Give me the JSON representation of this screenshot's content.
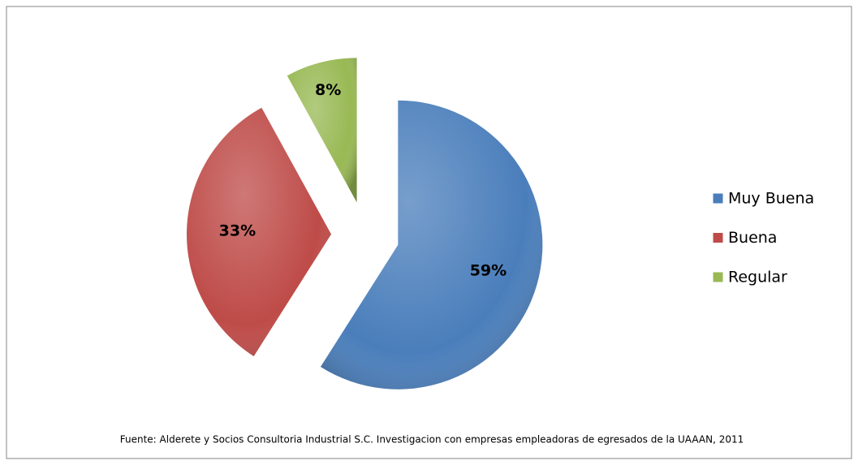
{
  "chart_data": {
    "type": "pie",
    "categories": [
      "Muy Buena",
      "Buena",
      "Regular"
    ],
    "values": [
      59,
      33,
      8
    ],
    "value_labels": [
      "59%",
      "33%",
      "8%"
    ],
    "colors": [
      "#4a7ebb",
      "#be4b48",
      "#98b954"
    ],
    "legend": "right",
    "note": "Fuente: Alderete y Socios Consultoria Industrial S.C. Investigacion con empresas empleadoras de  egresados de la UAAAN,  2011"
  }
}
